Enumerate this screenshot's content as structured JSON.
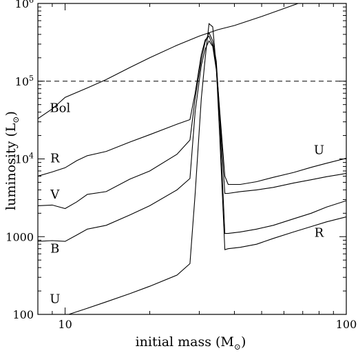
{
  "chart_data": {
    "type": "line",
    "title": "",
    "xlabel": "initial mass (M",
    "xlabel_sub": "⊙",
    "xlabel_close": ")",
    "ylabel": "luminosity (L",
    "ylabel_sub": "⊙",
    "ylabel_close": ")",
    "x_scale": "log",
    "y_scale": "log",
    "xlim": [
      8,
      100
    ],
    "ylim": [
      100,
      1000000
    ],
    "grid": false,
    "x_ticks": [
      {
        "value": 10,
        "label": "10"
      },
      {
        "value": 100,
        "label": "100"
      }
    ],
    "y_ticks": [
      {
        "value": 100,
        "label": "100"
      },
      {
        "value": 1000,
        "label": "1000"
      },
      {
        "value": 10000,
        "base": "10",
        "exp": "4"
      },
      {
        "value": 100000,
        "base": "10",
        "exp": "5"
      },
      {
        "value": 1000000,
        "base": "10",
        "exp": "6"
      }
    ],
    "reference_line": {
      "y": 100000,
      "style": "dashed"
    },
    "series": [
      {
        "name": "Bol",
        "points": [
          [
            8,
            33000
          ],
          [
            9,
            44000
          ],
          [
            10,
            62000
          ],
          [
            12,
            82000
          ],
          [
            14,
            105000
          ],
          [
            17,
            150000
          ],
          [
            20,
            200000
          ],
          [
            25,
            290000
          ],
          [
            30,
            380000
          ],
          [
            35,
            460000
          ],
          [
            40,
            520000
          ],
          [
            50,
            680000
          ],
          [
            60,
            860000
          ],
          [
            70,
            1050000
          ]
        ]
      },
      {
        "name": "R",
        "points": [
          [
            8,
            6000
          ],
          [
            9,
            6800
          ],
          [
            10,
            7700
          ],
          [
            11,
            9500
          ],
          [
            12,
            11000
          ],
          [
            14,
            12500
          ],
          [
            17,
            16500
          ],
          [
            20,
            20500
          ],
          [
            25,
            28000
          ],
          [
            27.8,
            32000
          ],
          [
            29,
            70000
          ],
          [
            30.5,
            220000
          ],
          [
            31.5,
            340000
          ],
          [
            32.5,
            380000
          ],
          [
            33.5,
            290000
          ],
          [
            34.5,
            160000
          ],
          [
            35.5,
            40000
          ],
          [
            37,
            6000
          ],
          [
            38,
            4700
          ],
          [
            42,
            4700
          ],
          [
            48,
            5100
          ],
          [
            55,
            5800
          ],
          [
            65,
            6700
          ],
          [
            75,
            7800
          ],
          [
            85,
            8800
          ],
          [
            100,
            10200
          ]
        ]
      },
      {
        "name": "V",
        "points": [
          [
            8,
            2500
          ],
          [
            9,
            2550
          ],
          [
            10,
            2300
          ],
          [
            11,
            2800
          ],
          [
            12,
            3500
          ],
          [
            14,
            3800
          ],
          [
            17,
            5500
          ],
          [
            20,
            7000
          ],
          [
            25,
            11500
          ],
          [
            27.8,
            17500
          ],
          [
            29,
            60000
          ],
          [
            30.5,
            190000
          ],
          [
            31.5,
            320000
          ],
          [
            32.5,
            420000
          ],
          [
            33.5,
            330000
          ],
          [
            34.5,
            180000
          ],
          [
            35.5,
            35000
          ],
          [
            37,
            3600
          ],
          [
            38,
            3600
          ],
          [
            42,
            3800
          ],
          [
            48,
            4000
          ],
          [
            55,
            4300
          ],
          [
            65,
            4900
          ],
          [
            75,
            5400
          ],
          [
            85,
            5900
          ],
          [
            100,
            6500
          ]
        ]
      },
      {
        "name": "B",
        "points": [
          [
            8,
            870
          ],
          [
            9,
            890
          ],
          [
            10,
            870
          ],
          [
            11,
            1050
          ],
          [
            12,
            1250
          ],
          [
            14,
            1400
          ],
          [
            17,
            1900
          ],
          [
            20,
            2500
          ],
          [
            25,
            4000
          ],
          [
            27.8,
            5600
          ],
          [
            29,
            40000
          ],
          [
            30.5,
            160000
          ],
          [
            31.5,
            260000
          ],
          [
            32.5,
            330000
          ],
          [
            33.5,
            280000
          ],
          [
            34.5,
            140000
          ],
          [
            35.5,
            30000
          ],
          [
            37,
            1100
          ],
          [
            38,
            1100
          ],
          [
            42,
            1150
          ],
          [
            48,
            1250
          ],
          [
            55,
            1400
          ],
          [
            65,
            1700
          ],
          [
            75,
            2000
          ],
          [
            85,
            2400
          ],
          [
            100,
            2900
          ]
        ]
      },
      {
        "name": "U",
        "points": [
          [
            10.3,
            100
          ],
          [
            12,
            120
          ],
          [
            14,
            145
          ],
          [
            17,
            185
          ],
          [
            20,
            230
          ],
          [
            25,
            320
          ],
          [
            27.8,
            450
          ],
          [
            29,
            3500
          ],
          [
            30.5,
            60000
          ],
          [
            31.5,
            200000
          ],
          [
            32.5,
            550000
          ],
          [
            33.5,
            500000
          ],
          [
            34.5,
            150000
          ],
          [
            35.5,
            18000
          ],
          [
            37,
            680
          ],
          [
            38,
            700
          ],
          [
            42,
            730
          ],
          [
            48,
            800
          ],
          [
            55,
            950
          ],
          [
            65,
            1150
          ],
          [
            75,
            1350
          ],
          [
            85,
            1550
          ],
          [
            100,
            1800
          ]
        ]
      }
    ],
    "annotations": [
      {
        "text": "Bol",
        "x": 9.6,
        "y": 40000
      },
      {
        "text": "R",
        "x": 9.2,
        "y": 9000
      },
      {
        "text": "V",
        "x": 9.2,
        "y": 3100
      },
      {
        "text": "B",
        "x": 9.2,
        "y": 620
      },
      {
        "text": "U",
        "x": 9.2,
        "y": 140
      },
      {
        "text": "U",
        "x": 80,
        "y": 11500
      },
      {
        "text": "R",
        "x": 80,
        "y": 1000
      }
    ]
  }
}
